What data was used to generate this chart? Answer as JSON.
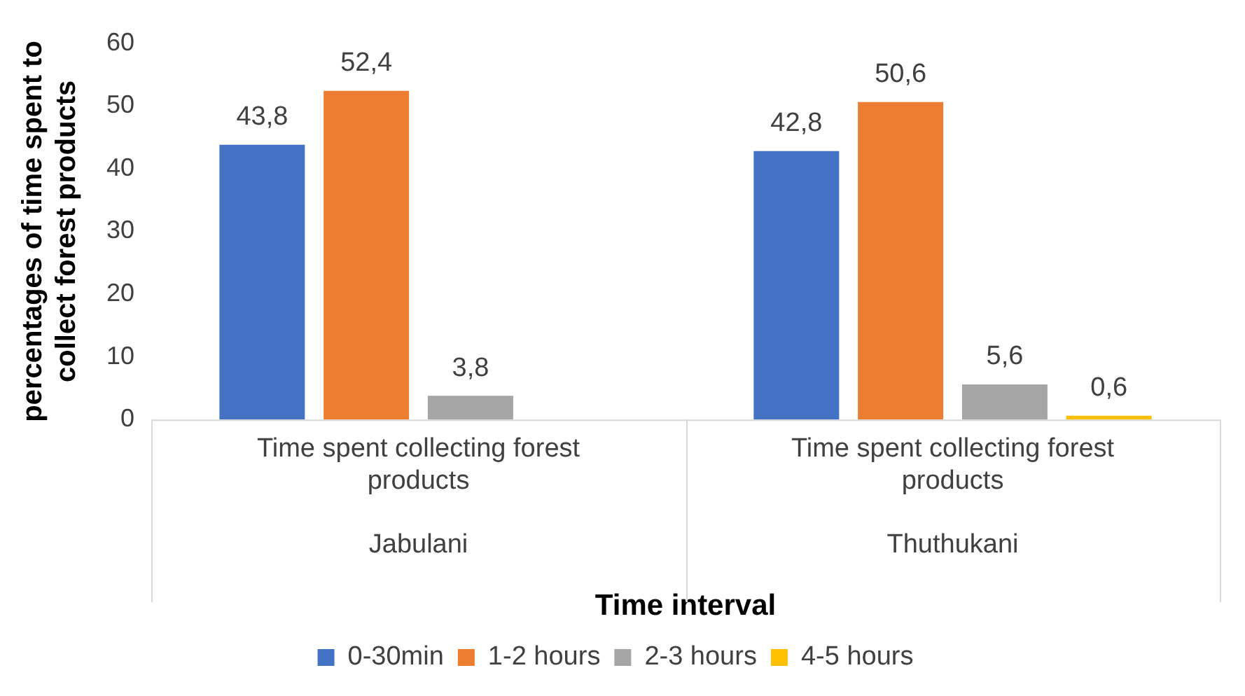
{
  "chart_data": {
    "type": "bar",
    "xlabel": "Time interval",
    "ylabel": "percentages of time spent to collect forest products",
    "categories": [
      "Jabulani",
      "Thuthukani"
    ],
    "annotations": [
      "Time spent collecting forest products",
      "Time spent collecting forest products"
    ],
    "series": [
      {
        "name": "0-30min",
        "color": "#4472c4",
        "values": [
          43.8,
          42.8
        ],
        "value_labels": [
          "43,8",
          "42,8"
        ]
      },
      {
        "name": "1-2 hours",
        "color": "#ed7d31",
        "values": [
          52.4,
          50.6
        ],
        "value_labels": [
          "52,4",
          "50,6"
        ]
      },
      {
        "name": "2-3 hours",
        "color": "#a5a5a5",
        "values": [
          3.8,
          5.6
        ],
        "value_labels": [
          "3,8",
          "5,6"
        ]
      },
      {
        "name": "4-5 hours",
        "color": "#ffc000",
        "values": [
          null,
          0.6
        ],
        "value_labels": [
          null,
          "0,6"
        ]
      }
    ],
    "ylim": [
      0,
      60
    ],
    "yticks": [
      0,
      10,
      20,
      30,
      40,
      50,
      60
    ],
    "grid": false,
    "legend": "bottom"
  }
}
